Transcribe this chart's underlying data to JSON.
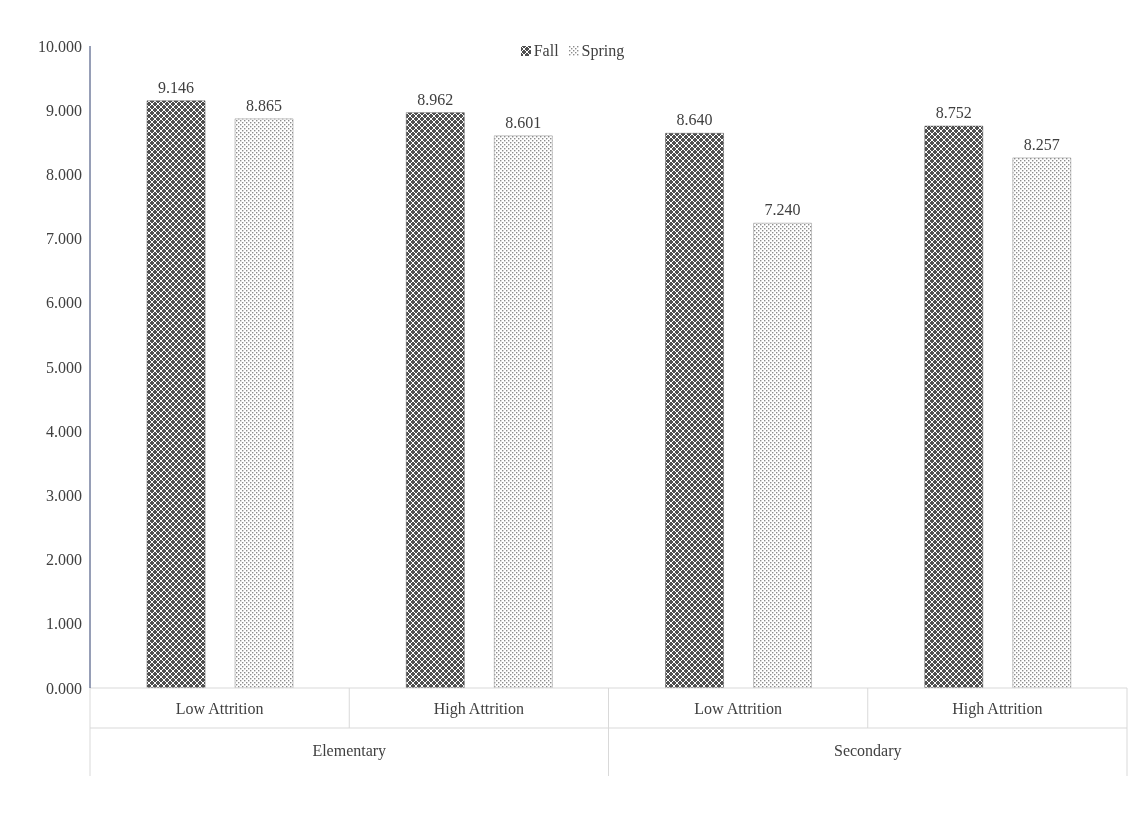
{
  "chart_data": {
    "type": "bar",
    "categories": [
      "Low Attrition",
      "High Attrition",
      "Low Attrition",
      "High Attrition"
    ],
    "annotations": [
      "Elementary",
      "Secondary"
    ],
    "series": [
      {
        "name": "Fall",
        "color": "#505050",
        "values": [
          9.146,
          8.962,
          8.64,
          8.752
        ],
        "value_labels": [
          "9.146",
          "8.962",
          "8.640",
          "8.752"
        ]
      },
      {
        "name": "Spring",
        "color": "#8c8c8c",
        "values": [
          8.865,
          8.601,
          7.24,
          8.257
        ],
        "value_labels": [
          "8.865",
          "8.601",
          "7.240",
          "8.257"
        ]
      }
    ],
    "ylim": [
      0,
      10
    ],
    "yticks": [
      {
        "value": 0,
        "label": "0.000"
      },
      {
        "value": 1,
        "label": "1.000"
      },
      {
        "value": 2,
        "label": "2.000"
      },
      {
        "value": 3,
        "label": "3.000"
      },
      {
        "value": 4,
        "label": "4.000"
      },
      {
        "value": 5,
        "label": "5.000"
      },
      {
        "value": 6,
        "label": "6.000"
      },
      {
        "value": 7,
        "label": "7.000"
      },
      {
        "value": 8,
        "label": "8.000"
      },
      {
        "value": 9,
        "label": "9.000"
      },
      {
        "value": 10,
        "label": "10.000"
      }
    ],
    "legend": "top",
    "grid": false
  }
}
